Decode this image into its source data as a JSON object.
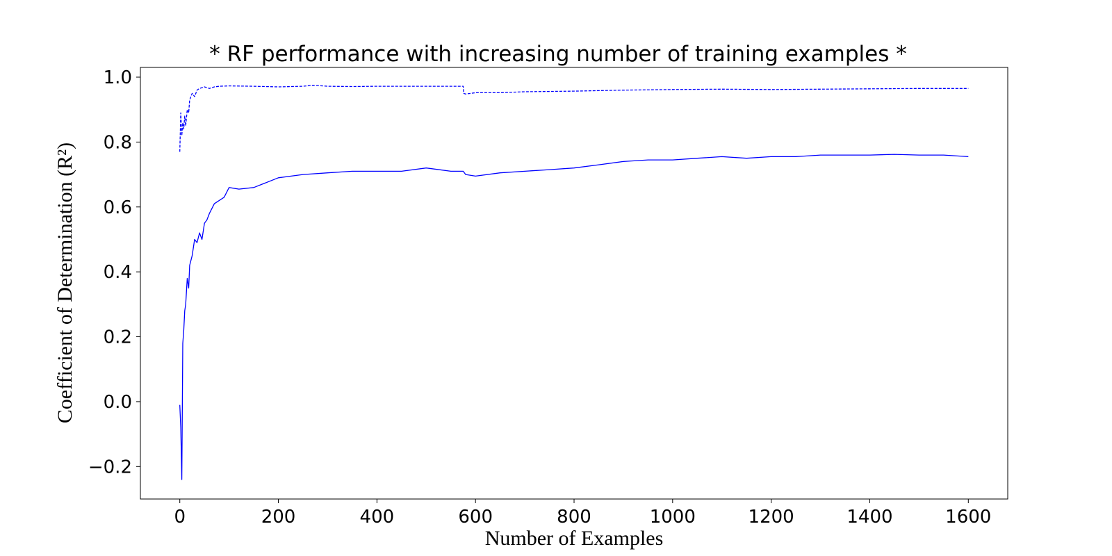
{
  "chart_data": {
    "type": "line",
    "title": "* RF performance with increasing number of training examples *",
    "xlabel": "Number of Examples",
    "ylabel": "Coefficient of Determination (R²)",
    "xlim": [
      -80,
      1680
    ],
    "ylim": [
      -0.3,
      1.03
    ],
    "xticks": [
      0,
      200,
      400,
      600,
      800,
      1000,
      1200,
      1400,
      1600
    ],
    "xtick_labels": [
      "0",
      "200",
      "400",
      "600",
      "800",
      "1000",
      "1200",
      "1400",
      "1600"
    ],
    "yticks": [
      -0.2,
      0.0,
      0.2,
      0.4,
      0.6,
      0.8,
      1.0
    ],
    "ytick_labels": [
      "−0.2",
      "0.0",
      "0.2",
      "0.4",
      "0.6",
      "0.8",
      "1.0"
    ],
    "grid": false,
    "series": [
      {
        "style": "dashed",
        "color": "#0000ff",
        "x": [
          0,
          2,
          4,
          6,
          8,
          10,
          12,
          15,
          18,
          20,
          25,
          30,
          35,
          40,
          50,
          60,
          70,
          80,
          100,
          150,
          200,
          250,
          270,
          300,
          350,
          400,
          450,
          500,
          550,
          575,
          576,
          580,
          600,
          650,
          700,
          800,
          900,
          1000,
          1100,
          1200,
          1300,
          1400,
          1500,
          1600
        ],
        "y": [
          0.77,
          0.89,
          0.82,
          0.86,
          0.84,
          0.88,
          0.85,
          0.9,
          0.89,
          0.93,
          0.95,
          0.94,
          0.96,
          0.965,
          0.97,
          0.965,
          0.97,
          0.972,
          0.973,
          0.972,
          0.97,
          0.972,
          0.975,
          0.972,
          0.971,
          0.972,
          0.972,
          0.972,
          0.972,
          0.972,
          0.95,
          0.948,
          0.952,
          0.952,
          0.955,
          0.957,
          0.96,
          0.962,
          0.963,
          0.962,
          0.963,
          0.964,
          0.965,
          0.965
        ]
      },
      {
        "style": "solid",
        "color": "#0000ff",
        "x": [
          0,
          2,
          4,
          6,
          8,
          10,
          12,
          15,
          18,
          20,
          25,
          30,
          35,
          40,
          45,
          50,
          55,
          60,
          70,
          80,
          90,
          100,
          120,
          150,
          200,
          250,
          300,
          350,
          400,
          450,
          500,
          550,
          575,
          580,
          600,
          650,
          700,
          750,
          800,
          850,
          900,
          950,
          1000,
          1050,
          1100,
          1150,
          1200,
          1250,
          1300,
          1350,
          1400,
          1450,
          1500,
          1550,
          1600
        ],
        "y": [
          -0.01,
          -0.08,
          -0.24,
          0.18,
          0.22,
          0.28,
          0.3,
          0.38,
          0.35,
          0.42,
          0.45,
          0.5,
          0.49,
          0.52,
          0.5,
          0.55,
          0.56,
          0.58,
          0.61,
          0.62,
          0.63,
          0.66,
          0.655,
          0.66,
          0.69,
          0.7,
          0.705,
          0.71,
          0.71,
          0.71,
          0.72,
          0.71,
          0.71,
          0.7,
          0.695,
          0.705,
          0.71,
          0.715,
          0.72,
          0.73,
          0.74,
          0.745,
          0.745,
          0.75,
          0.755,
          0.75,
          0.755,
          0.755,
          0.76,
          0.76,
          0.76,
          0.762,
          0.76,
          0.76,
          0.755
        ]
      }
    ]
  }
}
